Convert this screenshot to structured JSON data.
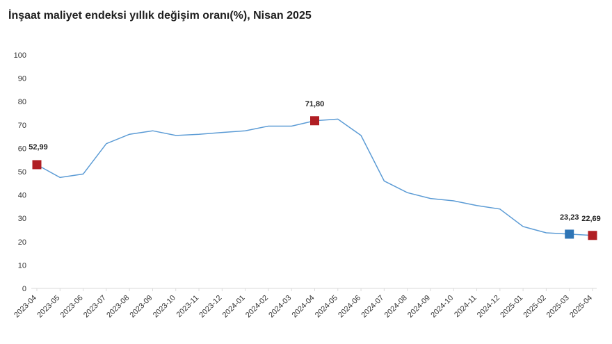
{
  "colors": {
    "line": "#5b9bd5",
    "marker_default": "#b01e23",
    "marker_prev": "#2e75b6",
    "axis": "#d9d9d9"
  },
  "chart_data": {
    "type": "line",
    "title": "İnşaat maliyet endeksi yıllık değişim oranı(%), Nisan 2025",
    "xlabel": "",
    "ylabel": "",
    "ylim": [
      0,
      100
    ],
    "yticks": [
      0,
      10,
      20,
      30,
      40,
      50,
      60,
      70,
      80,
      90,
      100
    ],
    "grid": false,
    "categories": [
      "2023-04",
      "2023-05",
      "2023-06",
      "2023-07",
      "2023-08",
      "2023-09",
      "2023-10",
      "2023-11",
      "2023-12",
      "2024-01",
      "2024-02",
      "2024-03",
      "2024-04",
      "2024-05",
      "2024-06",
      "2024-07",
      "2024-08",
      "2024-09",
      "2024-10",
      "2024-11",
      "2024-12",
      "2025-01",
      "2025-02",
      "2025-03",
      "2025-04"
    ],
    "series": [
      {
        "values": [
          52.99,
          47.5,
          49.0,
          62.0,
          66.0,
          67.5,
          65.5,
          66.0,
          66.8,
          67.5,
          69.5,
          69.5,
          71.8,
          72.5,
          65.5,
          46.0,
          41.0,
          38.5,
          37.5,
          35.5,
          34.0,
          26.5,
          23.8,
          23.23,
          22.69
        ]
      }
    ],
    "markers": [
      {
        "index": 0,
        "label": "52,99",
        "style": "default"
      },
      {
        "index": 12,
        "label": "71,80",
        "style": "default"
      },
      {
        "index": 23,
        "label": "23,23",
        "style": "prev"
      },
      {
        "index": 24,
        "label": "22,69",
        "style": "default"
      }
    ]
  }
}
